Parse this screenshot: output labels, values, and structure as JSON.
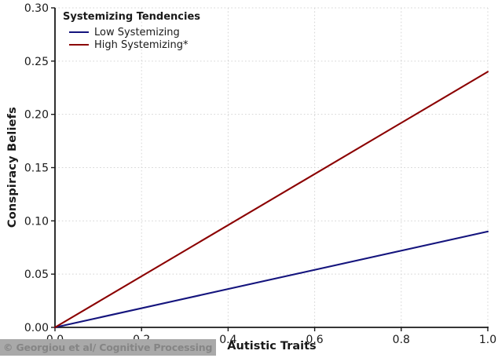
{
  "watermark": {
    "text": "© Georgiou et al/ Cognitive Processing",
    "background": "#a9a9a9",
    "text_color": "#858585"
  },
  "colors": {
    "background": "#ffffff",
    "axis": "#1a1a1a",
    "tick_label": "#1a1a1a",
    "grid": "#d4d4d4",
    "low_series": "#14147d",
    "high_series": "#8b0000"
  },
  "chart_data": {
    "type": "line",
    "title": "",
    "xlabel": "Autistic Traits",
    "ylabel": "Conspiracy Beliefs",
    "xlim": [
      0.0,
      1.0
    ],
    "ylim": [
      0.0,
      0.3
    ],
    "x_ticks": [
      0.0,
      0.2,
      0.4,
      0.6,
      0.8,
      1.0
    ],
    "x_tick_labels": [
      "0.0",
      "0.2",
      "0.4",
      "0.6",
      "0.8",
      "1.0"
    ],
    "y_ticks": [
      0.0,
      0.05,
      0.1,
      0.15,
      0.2,
      0.25,
      0.3
    ],
    "y_tick_labels": [
      "0.00",
      "0.05",
      "0.10",
      "0.15",
      "0.20",
      "0.25",
      "0.30"
    ],
    "grid": true,
    "grid_style": "dotted",
    "legend": {
      "title": "Systemizing Tendencies",
      "position": "upper-left",
      "frame": false
    },
    "series": [
      {
        "name": "Low Systemizing",
        "color": "#14147d",
        "x": [
          0.0,
          1.0
        ],
        "y": [
          0.0,
          0.09
        ]
      },
      {
        "name": "High Systemizing*",
        "color": "#8b0000",
        "x": [
          0.0,
          1.0
        ],
        "y": [
          0.0,
          0.24
        ]
      }
    ]
  }
}
